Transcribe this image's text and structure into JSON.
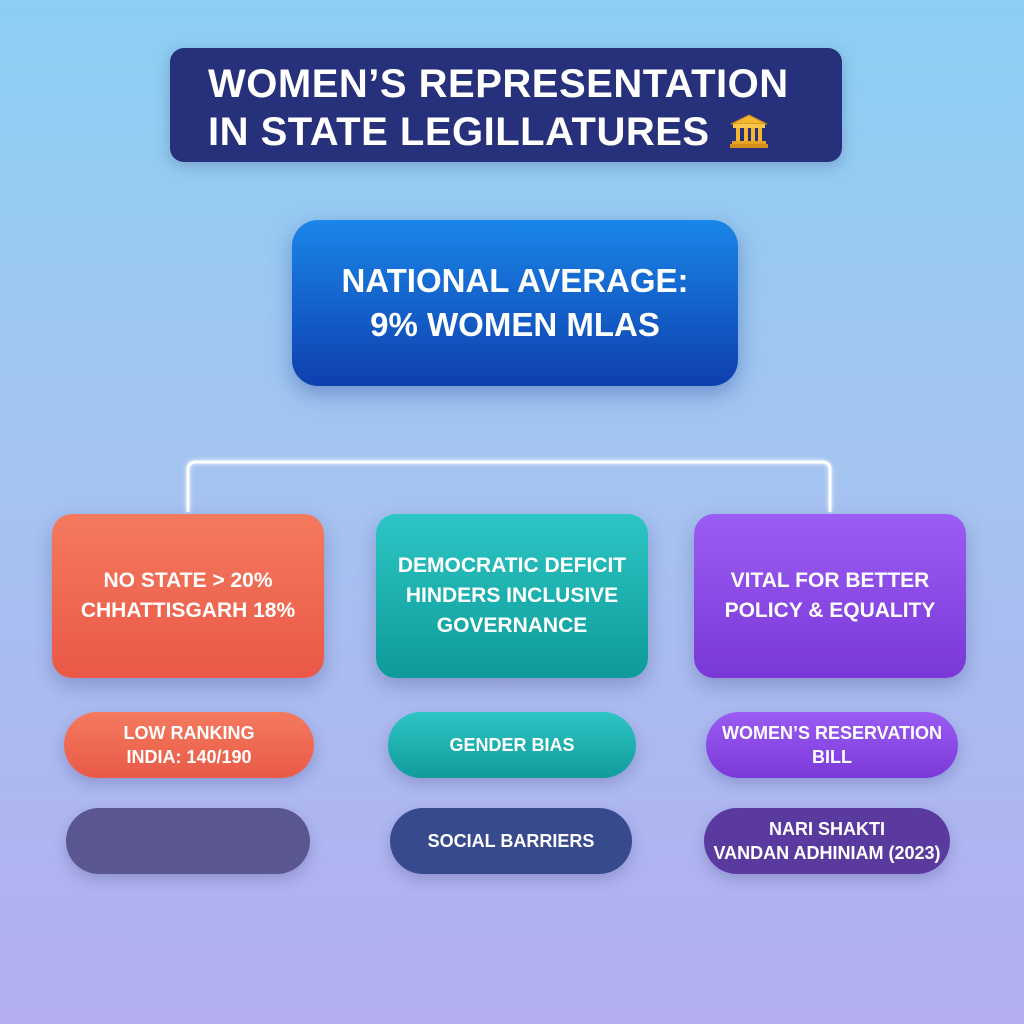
{
  "title": {
    "line1": "WOMEN’S REPRESENTATION",
    "line2": "IN STATE LEGILLATURES",
    "icon": "government-building-icon"
  },
  "central": {
    "line1": "NATIONAL AVERAGE:",
    "line2": "9% WOMEN MLAS"
  },
  "cards": [
    {
      "lines": [
        "NO STATE > 20%",
        "CHHATTISGARH 18%"
      ],
      "color": "#ee6450"
    },
    {
      "lines": [
        "DEMOCRATIC DEFICIT",
        "HINDERS INCLUSIVE",
        "GOVERNANCE"
      ],
      "color": "#1db3b2"
    },
    {
      "lines": [
        "VITAL FOR BETTER",
        "POLICY & EQUALITY"
      ],
      "color": "#8b4ae6"
    }
  ],
  "pills": {
    "row1": [
      {
        "lines": [
          "LOW RANKING",
          "INDIA: 140/190"
        ],
        "color": "#ee6a52"
      },
      {
        "lines": [
          "GENDER BIAS"
        ],
        "color": "#1eb0af"
      },
      {
        "lines": [
          "WOMEN’S RESERVATION",
          "BILL"
        ],
        "color": "#8a4ae5"
      }
    ],
    "row2": [
      {
        "lines": [
          ""
        ],
        "color": "#5a5690"
      },
      {
        "lines": [
          "SOCIAL BARRIERS"
        ],
        "color": "#384a8e"
      },
      {
        "lines": [
          "NARI SHAKTI",
          "VANDAN ADHINIAM (2023)"
        ],
        "color": "#5a3a9e"
      }
    ]
  }
}
